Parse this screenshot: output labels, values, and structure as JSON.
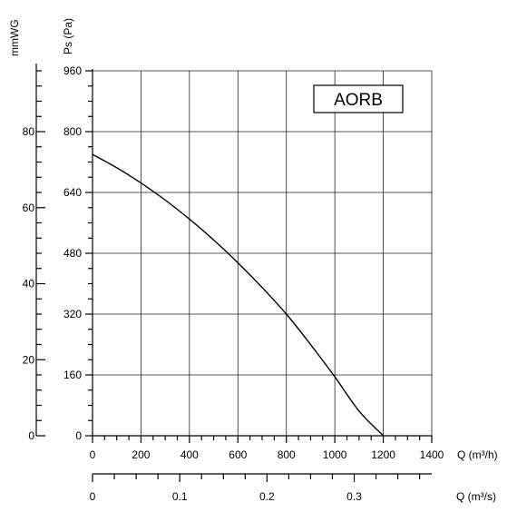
{
  "chart_data": {
    "type": "line",
    "title": "",
    "legend": "AORB",
    "xlabel": "Q (m³/h)",
    "ylabel": "Ps (Pa)",
    "xlim": [
      0,
      1400
    ],
    "ylim": [
      0,
      960
    ],
    "x_ticks": [
      "0",
      "200",
      "400",
      "600",
      "800",
      "1000",
      "1200",
      "1400"
    ],
    "y_ticks": [
      "0",
      "160",
      "320",
      "480",
      "640",
      "800",
      "960"
    ],
    "secondary_y": {
      "label": "mmWG",
      "range": [
        0,
        96
      ],
      "ticks": [
        "0",
        "20",
        "40",
        "60",
        "80"
      ]
    },
    "secondary_x": {
      "label": "Q (m³/s)",
      "range": [
        0,
        0.3889
      ],
      "ticks": [
        "0",
        "0.1",
        "0.2",
        "0.3"
      ]
    },
    "grid": true,
    "series": [
      {
        "x": [
          0,
          100,
          200,
          300,
          400,
          500,
          600,
          700,
          800,
          900,
          1000,
          1100,
          1200
        ],
        "values": [
          740,
          705,
          665,
          620,
          570,
          515,
          455,
          390,
          320,
          240,
          155,
          65,
          0
        ]
      }
    ]
  }
}
